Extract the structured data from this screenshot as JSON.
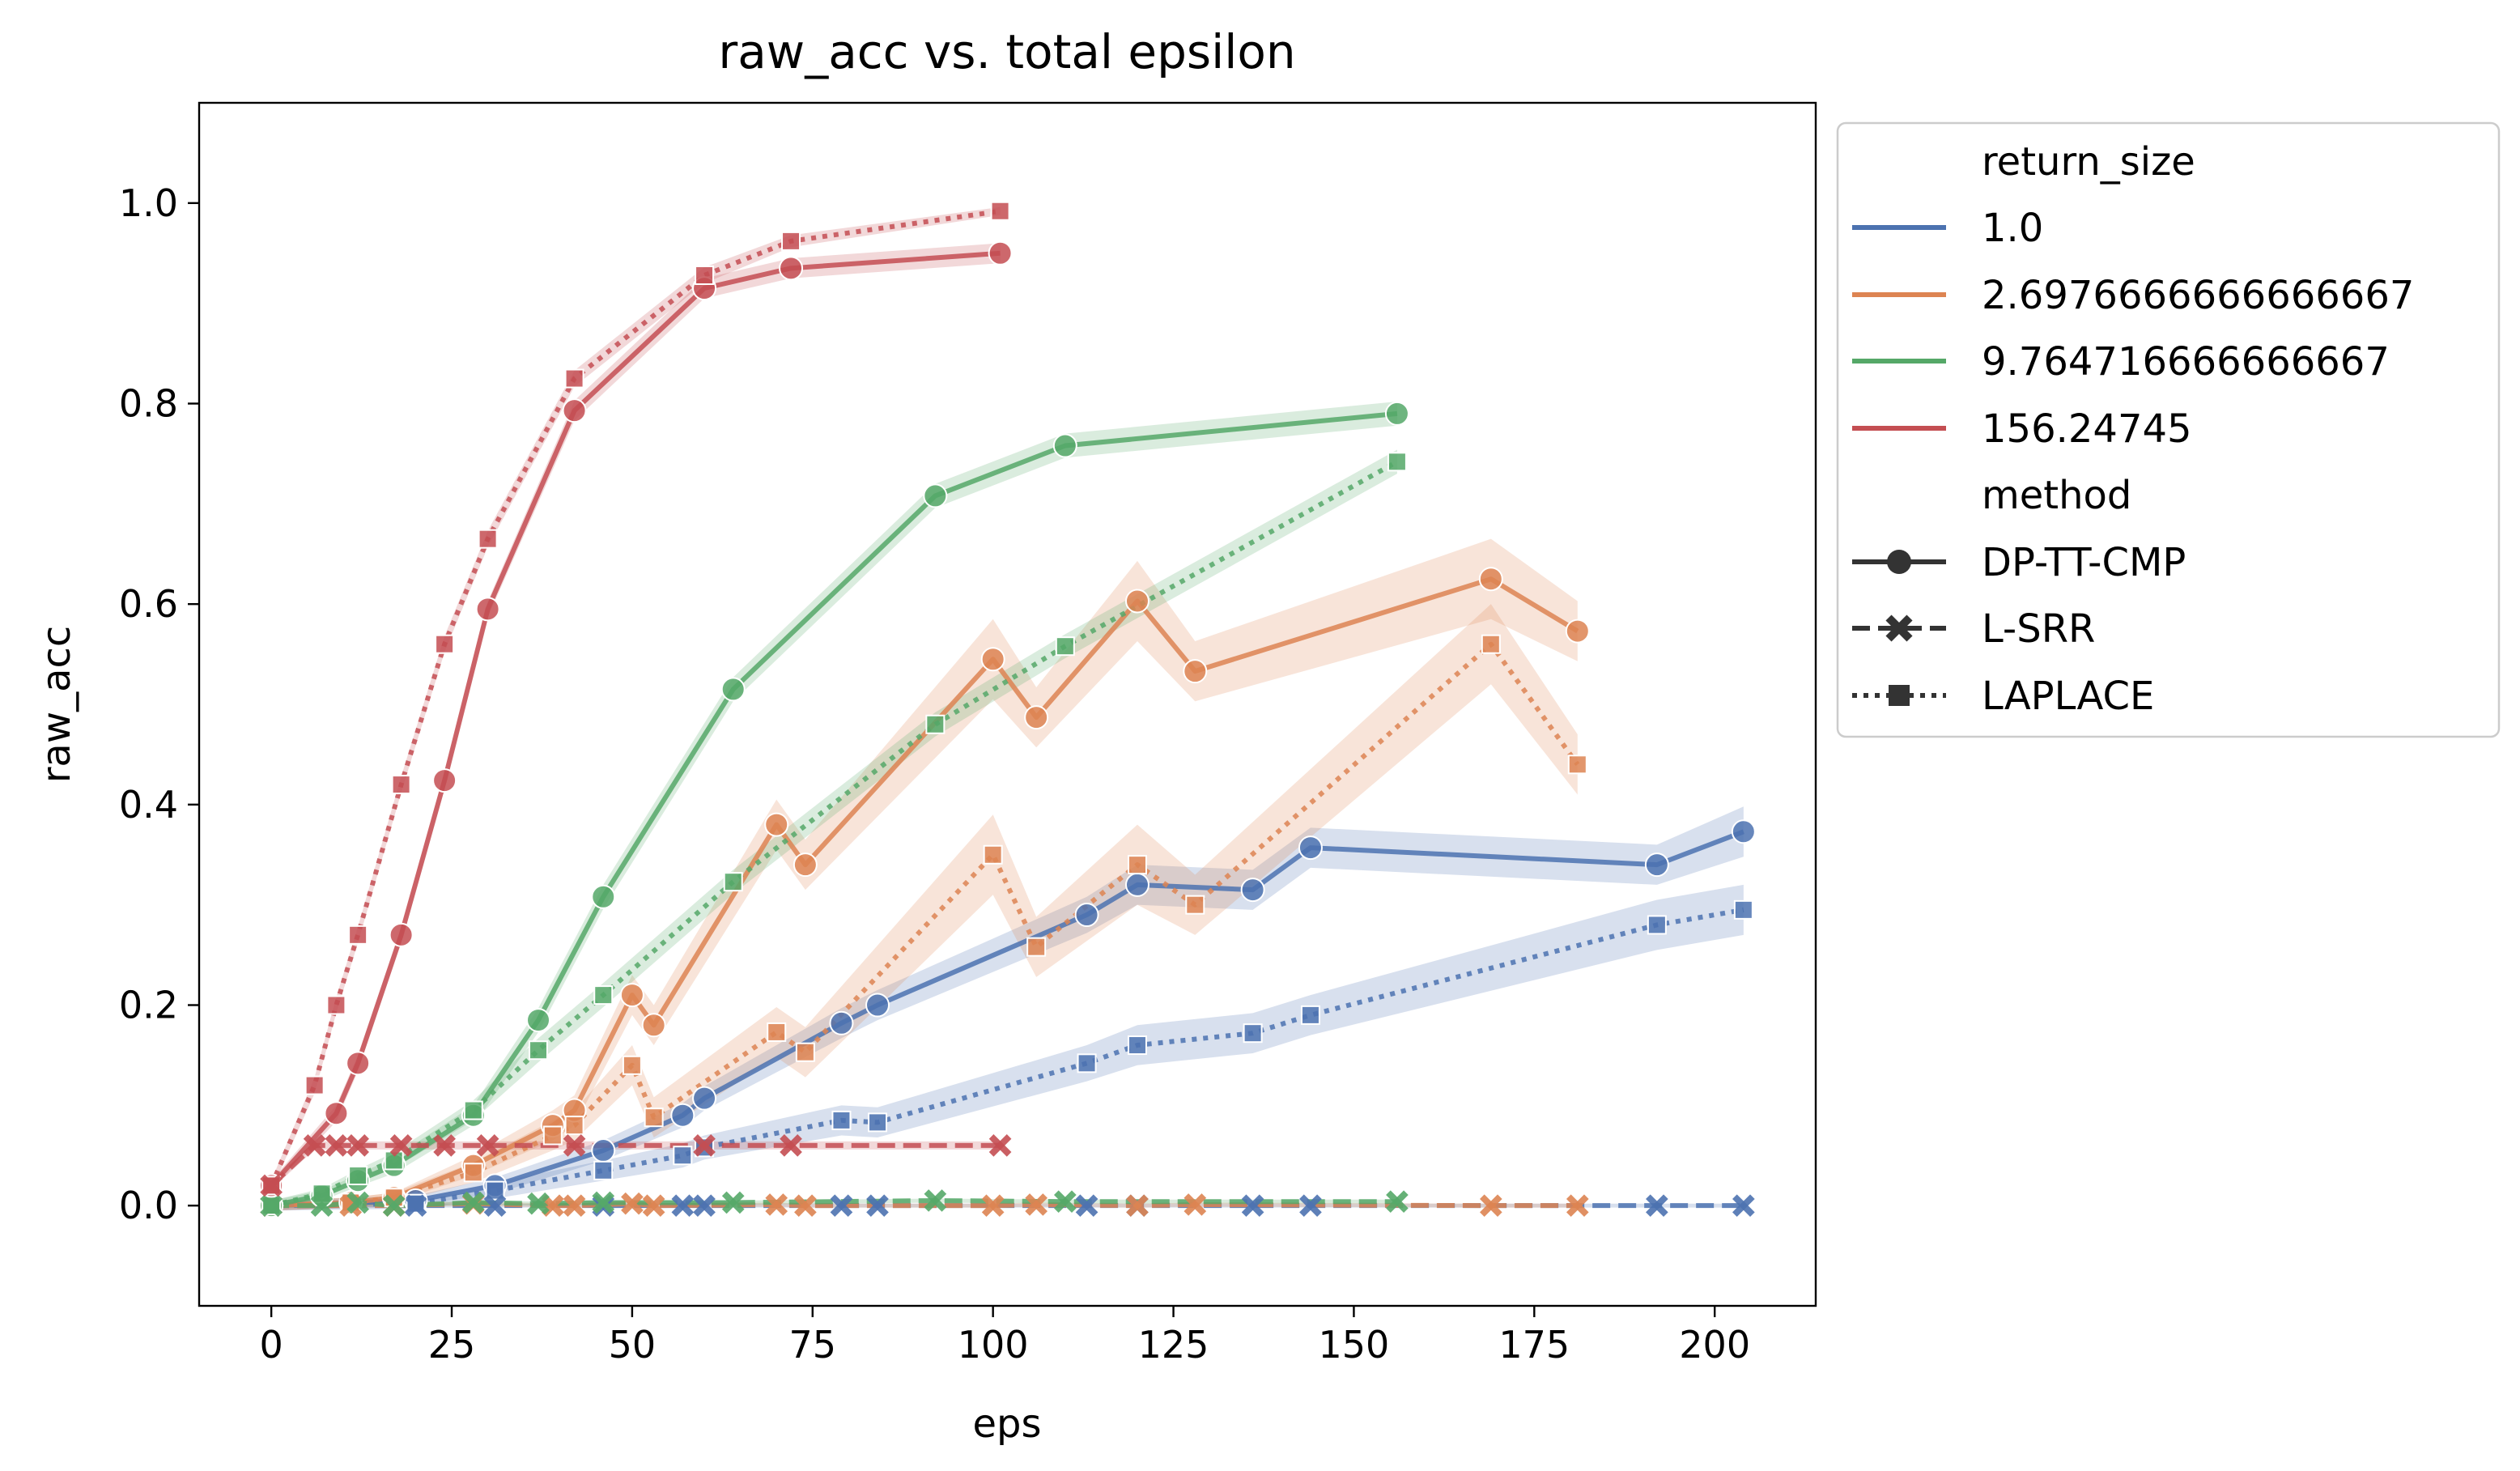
{
  "colors": {
    "return_size_1": "#4c72b0",
    "return_size_2": "#dd8452",
    "return_size_3": "#55a868",
    "return_size_4": "#c44e52",
    "axes": "#000000",
    "method_marker": "#333333"
  },
  "chart_data": {
    "type": "line",
    "title": "raw_acc vs. total epsilon",
    "xlabel": "eps",
    "ylabel": "raw_acc",
    "xlim": [
      -10,
      214
    ],
    "ylim": [
      -0.1,
      1.1
    ],
    "xticks": [
      0,
      25,
      50,
      75,
      100,
      125,
      150,
      175,
      200
    ],
    "xtick_labels": [
      "0",
      "25",
      "50",
      "75",
      "100",
      "125",
      "150",
      "175",
      "200"
    ],
    "yticks": [
      0.0,
      0.2,
      0.4,
      0.6,
      0.8,
      1.0
    ],
    "ytick_labels": [
      "0.0",
      "0.2",
      "0.4",
      "0.6",
      "0.8",
      "1.0"
    ],
    "grid": false,
    "legend": {
      "placement": "outside right",
      "hue_title": "return_size",
      "hue_entries": [
        {
          "label": "1.0",
          "color_key": "return_size_1"
        },
        {
          "label": "2.6976666666666667",
          "color_key": "return_size_2"
        },
        {
          "label": "9.764716666666667",
          "color_key": "return_size_3"
        },
        {
          "label": "156.24745",
          "color_key": "return_size_4"
        }
      ],
      "style_title": "method",
      "style_entries": [
        {
          "label": "DP-TT-CMP",
          "dash": "solid",
          "marker": "circle"
        },
        {
          "label": "L-SRR",
          "dash": "dashed",
          "marker": "x"
        },
        {
          "label": "LAPLACE",
          "dash": "dotted",
          "marker": "square"
        }
      ]
    },
    "series": [
      {
        "return_size": "1.0",
        "method": "DP-TT-CMP",
        "color_key": "return_size_1",
        "dash": "solid",
        "marker": "circle",
        "points": [
          [
            0,
            0.0
          ],
          [
            20,
            0.005
          ],
          [
            31,
            0.02
          ],
          [
            46,
            0.055
          ],
          [
            57,
            0.09
          ],
          [
            60,
            0.107
          ],
          [
            79,
            0.182
          ],
          [
            84,
            0.2
          ],
          [
            113,
            0.29
          ],
          [
            120,
            0.32
          ],
          [
            136,
            0.315
          ],
          [
            144,
            0.357
          ],
          [
            192,
            0.34
          ],
          [
            204,
            0.373
          ]
        ],
        "band": [
          0.005,
          0.005,
          0.008,
          0.01,
          0.012,
          0.012,
          0.015,
          0.015,
          0.018,
          0.02,
          0.02,
          0.02,
          0.02,
          0.025
        ]
      },
      {
        "return_size": "1.0",
        "method": "LAPLACE",
        "color_key": "return_size_1",
        "dash": "dotted",
        "marker": "square",
        "points": [
          [
            0,
            0.0
          ],
          [
            20,
            0.002
          ],
          [
            31,
            0.015
          ],
          [
            46,
            0.035
          ],
          [
            57,
            0.05
          ],
          [
            60,
            0.058
          ],
          [
            79,
            0.085
          ],
          [
            84,
            0.083
          ],
          [
            113,
            0.142
          ],
          [
            120,
            0.16
          ],
          [
            136,
            0.172
          ],
          [
            144,
            0.19
          ],
          [
            192,
            0.28
          ],
          [
            204,
            0.295
          ]
        ],
        "band": [
          0.005,
          0.005,
          0.008,
          0.01,
          0.012,
          0.012,
          0.015,
          0.015,
          0.018,
          0.02,
          0.02,
          0.02,
          0.025,
          0.025
        ]
      },
      {
        "return_size": "1.0",
        "method": "L-SRR",
        "color_key": "return_size_1",
        "dash": "dashed",
        "marker": "x",
        "points": [
          [
            0,
            0.0
          ],
          [
            20,
            0.0
          ],
          [
            31,
            0.0
          ],
          [
            46,
            0.0
          ],
          [
            57,
            0.0
          ],
          [
            60,
            0.0
          ],
          [
            79,
            0.0
          ],
          [
            84,
            0.0
          ],
          [
            113,
            0.0
          ],
          [
            120,
            0.0
          ],
          [
            136,
            0.0
          ],
          [
            144,
            0.0
          ],
          [
            192,
            0.0
          ],
          [
            204,
            0.0
          ]
        ],
        "band": [
          0.002,
          0.002,
          0.002,
          0.002,
          0.002,
          0.002,
          0.002,
          0.002,
          0.002,
          0.002,
          0.002,
          0.002,
          0.002,
          0.002
        ]
      },
      {
        "return_size": "2.6976666666666667",
        "method": "DP-TT-CMP",
        "color_key": "return_size_2",
        "dash": "solid",
        "marker": "circle",
        "points": [
          [
            0,
            0.0
          ],
          [
            11,
            0.003
          ],
          [
            17,
            0.008
          ],
          [
            28,
            0.04
          ],
          [
            39,
            0.08
          ],
          [
            42,
            0.095
          ],
          [
            50,
            0.21
          ],
          [
            53,
            0.18
          ],
          [
            70,
            0.38
          ],
          [
            74,
            0.34
          ],
          [
            100,
            0.545
          ],
          [
            106,
            0.487
          ],
          [
            120,
            0.603
          ],
          [
            128,
            0.533
          ],
          [
            169,
            0.625
          ],
          [
            181,
            0.573
          ]
        ],
        "band": [
          0.005,
          0.005,
          0.005,
          0.01,
          0.015,
          0.015,
          0.02,
          0.02,
          0.025,
          0.025,
          0.04,
          0.03,
          0.04,
          0.03,
          0.04,
          0.03
        ]
      },
      {
        "return_size": "2.6976666666666667",
        "method": "LAPLACE",
        "color_key": "return_size_2",
        "dash": "dotted",
        "marker": "square",
        "points": [
          [
            0,
            0.0
          ],
          [
            11,
            0.003
          ],
          [
            17,
            0.008
          ],
          [
            28,
            0.033
          ],
          [
            39,
            0.07
          ],
          [
            42,
            0.08
          ],
          [
            50,
            0.14
          ],
          [
            53,
            0.088
          ],
          [
            70,
            0.173
          ],
          [
            74,
            0.153
          ],
          [
            100,
            0.35
          ],
          [
            106,
            0.258
          ],
          [
            120,
            0.34
          ],
          [
            128,
            0.3
          ],
          [
            169,
            0.56
          ],
          [
            181,
            0.44
          ]
        ],
        "band": [
          0.005,
          0.005,
          0.005,
          0.01,
          0.015,
          0.015,
          0.02,
          0.02,
          0.025,
          0.025,
          0.04,
          0.03,
          0.04,
          0.03,
          0.04,
          0.03
        ]
      },
      {
        "return_size": "2.6976666666666667",
        "method": "L-SRR",
        "color_key": "return_size_2",
        "dash": "dashed",
        "marker": "x",
        "points": [
          [
            0,
            0.0
          ],
          [
            11,
            0.0
          ],
          [
            17,
            0.0
          ],
          [
            28,
            0.002
          ],
          [
            39,
            0.0
          ],
          [
            42,
            0.0
          ],
          [
            50,
            0.002
          ],
          [
            53,
            0.0
          ],
          [
            70,
            0.001
          ],
          [
            74,
            0.0
          ],
          [
            100,
            0.0
          ],
          [
            106,
            0.001
          ],
          [
            120,
            0.0
          ],
          [
            128,
            0.001
          ],
          [
            169,
            0.0
          ],
          [
            181,
            0.0
          ]
        ],
        "band": [
          0.002,
          0.002,
          0.002,
          0.002,
          0.002,
          0.002,
          0.002,
          0.002,
          0.002,
          0.002,
          0.002,
          0.002,
          0.002,
          0.002,
          0.002,
          0.002
        ]
      },
      {
        "return_size": "9.764716666666667",
        "method": "DP-TT-CMP",
        "color_key": "return_size_3",
        "dash": "solid",
        "marker": "circle",
        "points": [
          [
            0,
            0.0
          ],
          [
            7,
            0.01
          ],
          [
            12,
            0.025
          ],
          [
            17,
            0.04
          ],
          [
            28,
            0.09
          ],
          [
            37,
            0.185
          ],
          [
            46,
            0.308
          ],
          [
            64,
            0.515
          ],
          [
            92,
            0.708
          ],
          [
            110,
            0.758
          ],
          [
            156,
            0.79
          ]
        ],
        "band": [
          0.005,
          0.005,
          0.006,
          0.008,
          0.01,
          0.012,
          0.012,
          0.012,
          0.012,
          0.012,
          0.012
        ]
      },
      {
        "return_size": "9.764716666666667",
        "method": "LAPLACE",
        "color_key": "return_size_3",
        "dash": "dotted",
        "marker": "square",
        "points": [
          [
            0,
            0.0
          ],
          [
            7,
            0.012
          ],
          [
            12,
            0.03
          ],
          [
            17,
            0.045
          ],
          [
            28,
            0.095
          ],
          [
            37,
            0.155
          ],
          [
            46,
            0.21
          ],
          [
            64,
            0.323
          ],
          [
            92,
            0.48
          ],
          [
            110,
            0.558
          ],
          [
            156,
            0.742
          ]
        ],
        "band": [
          0.005,
          0.005,
          0.006,
          0.008,
          0.01,
          0.012,
          0.012,
          0.012,
          0.012,
          0.012,
          0.012
        ]
      },
      {
        "return_size": "9.764716666666667",
        "method": "L-SRR",
        "color_key": "return_size_3",
        "dash": "dashed",
        "marker": "x",
        "points": [
          [
            0,
            0.0
          ],
          [
            7,
            0.0
          ],
          [
            12,
            0.003
          ],
          [
            17,
            0.0
          ],
          [
            28,
            0.003
          ],
          [
            37,
            0.002
          ],
          [
            46,
            0.003
          ],
          [
            64,
            0.003
          ],
          [
            92,
            0.005
          ],
          [
            110,
            0.004
          ],
          [
            156,
            0.004
          ]
        ],
        "band": [
          0.002,
          0.002,
          0.002,
          0.002,
          0.002,
          0.002,
          0.002,
          0.002,
          0.002,
          0.002,
          0.002
        ]
      },
      {
        "return_size": "156.24745",
        "method": "DP-TT-CMP",
        "color_key": "return_size_4",
        "dash": "solid",
        "marker": "circle",
        "points": [
          [
            0,
            0.02
          ],
          [
            9,
            0.092
          ],
          [
            12,
            0.142
          ],
          [
            18,
            0.27
          ],
          [
            24,
            0.424
          ],
          [
            30,
            0.595
          ],
          [
            42,
            0.793
          ],
          [
            60,
            0.915
          ],
          [
            72,
            0.935
          ],
          [
            101,
            0.95
          ]
        ],
        "band": [
          0.005,
          0.008,
          0.008,
          0.008,
          0.008,
          0.008,
          0.01,
          0.01,
          0.01,
          0.01
        ]
      },
      {
        "return_size": "156.24745",
        "method": "LAPLACE",
        "color_key": "return_size_4",
        "dash": "dotted",
        "marker": "square",
        "points": [
          [
            0,
            0.02
          ],
          [
            6,
            0.12
          ],
          [
            9,
            0.2
          ],
          [
            12,
            0.27
          ],
          [
            18,
            0.42
          ],
          [
            24,
            0.56
          ],
          [
            30,
            0.665
          ],
          [
            42,
            0.825
          ],
          [
            60,
            0.928
          ],
          [
            72,
            0.962
          ],
          [
            101,
            0.992
          ]
        ],
        "band": [
          0.005,
          0.008,
          0.008,
          0.008,
          0.008,
          0.008,
          0.008,
          0.008,
          0.008,
          0.006,
          0.004
        ]
      },
      {
        "return_size": "156.24745",
        "method": "L-SRR",
        "color_key": "return_size_4",
        "dash": "dashed",
        "marker": "x",
        "points": [
          [
            0,
            0.02
          ],
          [
            6,
            0.06
          ],
          [
            9,
            0.06
          ],
          [
            12,
            0.06
          ],
          [
            18,
            0.06
          ],
          [
            24,
            0.06
          ],
          [
            30,
            0.06
          ],
          [
            42,
            0.06
          ],
          [
            60,
            0.06
          ],
          [
            72,
            0.06
          ],
          [
            101,
            0.06
          ]
        ],
        "band": [
          0.004,
          0.004,
          0.004,
          0.004,
          0.004,
          0.004,
          0.004,
          0.004,
          0.004,
          0.004,
          0.004
        ]
      }
    ]
  }
}
